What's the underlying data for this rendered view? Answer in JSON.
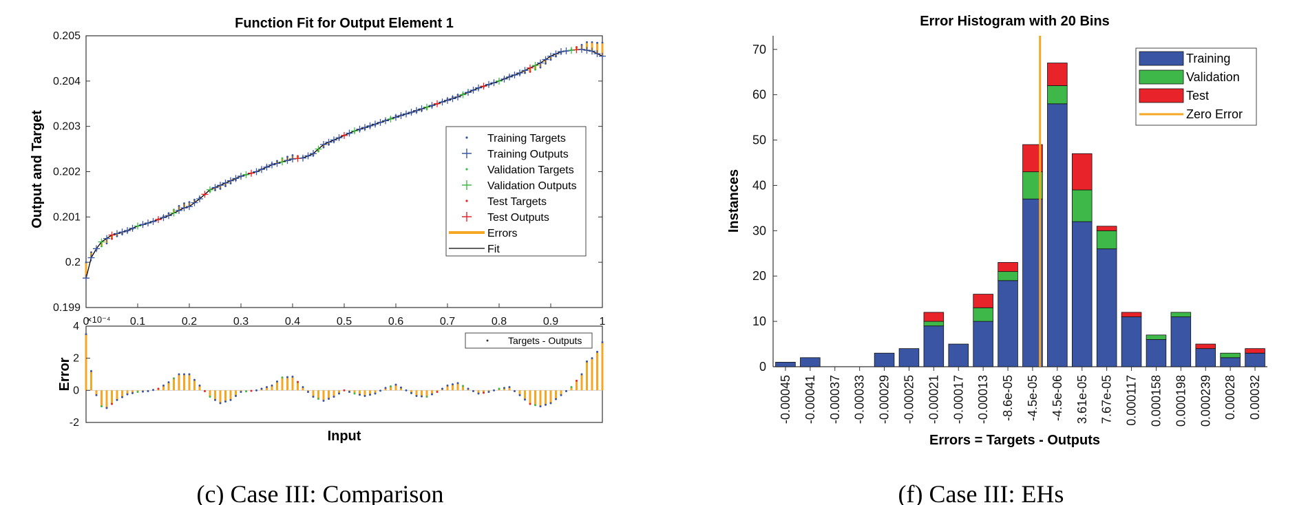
{
  "captions": {
    "left": "(c) Case III: Comparison",
    "right": "(f) Case III: EHs"
  },
  "colors": {
    "training": "#3a55a4",
    "validation": "#3fb84a",
    "test": "#e8232a",
    "errors": "#f5a623",
    "fit": "#000000",
    "zero_error": "#f5a623"
  },
  "chart_data": [
    {
      "type": "line",
      "title": "Function Fit for Output Element 1",
      "ylabel": "Output and Target",
      "xlim": [
        0,
        1
      ],
      "ylim": [
        0.199,
        0.205
      ],
      "yticks": [
        "0.199",
        "0.2",
        "0.201",
        "0.202",
        "0.203",
        "0.204",
        "0.205"
      ],
      "xticks": [
        "0",
        "0.1",
        "0.2",
        "0.3",
        "0.4",
        "0.5",
        "0.6",
        "0.7",
        "0.8",
        "0.9",
        "1"
      ],
      "legend_position": "right",
      "legend": [
        "Training Targets",
        "Training Outputs",
        "Validation Targets",
        "Validation Outputs",
        "Test Targets",
        "Test Outputs",
        "Errors",
        "Fit"
      ],
      "fit_curve": {
        "x": [
          0,
          0.01,
          0.02,
          0.03,
          0.05,
          0.08,
          0.1,
          0.13,
          0.16,
          0.19,
          0.2,
          0.22,
          0.24,
          0.26,
          0.3,
          0.33,
          0.36,
          0.4,
          0.42,
          0.44,
          0.46,
          0.48,
          0.52,
          0.56,
          0.6,
          0.64,
          0.68,
          0.72,
          0.76,
          0.8,
          0.84,
          0.88,
          0.9,
          0.92,
          0.94,
          0.96,
          0.98,
          1.0
        ],
        "y": [
          0.19965,
          0.2001,
          0.2003,
          0.20045,
          0.2006,
          0.2007,
          0.2008,
          0.2009,
          0.20103,
          0.2012,
          0.20123,
          0.2014,
          0.2016,
          0.2017,
          0.2019,
          0.202,
          0.20215,
          0.20228,
          0.2023,
          0.2024,
          0.2026,
          0.2027,
          0.2029,
          0.20305,
          0.2032,
          0.20335,
          0.2035,
          0.20365,
          0.20385,
          0.204,
          0.20418,
          0.2044,
          0.20455,
          0.20465,
          0.20468,
          0.2047,
          0.20466,
          0.20455
        ]
      },
      "error_subplot": {
        "ylabel": "Error",
        "xlabel": "Input",
        "ylim": [
          -2,
          4
        ],
        "yticks": [
          "-2",
          "0",
          "2",
          "4"
        ],
        "exponent": "×10⁻⁴",
        "legend": "Targets - Outputs",
        "error_curve": {
          "x": [
            0,
            0.01,
            0.02,
            0.03,
            0.04,
            0.06,
            0.08,
            0.1,
            0.12,
            0.14,
            0.16,
            0.18,
            0.2,
            0.22,
            0.24,
            0.26,
            0.28,
            0.3,
            0.33,
            0.36,
            0.38,
            0.4,
            0.42,
            0.44,
            0.46,
            0.48,
            0.5,
            0.52,
            0.54,
            0.56,
            0.58,
            0.6,
            0.62,
            0.64,
            0.66,
            0.68,
            0.7,
            0.72,
            0.74,
            0.76,
            0.78,
            0.8,
            0.82,
            0.84,
            0.86,
            0.88,
            0.9,
            0.92,
            0.94,
            0.96,
            0.97,
            0.98,
            0.99,
            1.0
          ],
          "y": [
            3.5,
            1.2,
            -0.3,
            -1.0,
            -1.1,
            -0.6,
            -0.25,
            -0.1,
            -0.05,
            0.1,
            0.5,
            1.0,
            1.0,
            0.3,
            -0.4,
            -0.8,
            -0.6,
            -0.1,
            0.0,
            0.3,
            0.8,
            0.85,
            0.2,
            -0.4,
            -0.65,
            -0.4,
            0.0,
            -0.2,
            -0.35,
            -0.2,
            0.15,
            0.35,
            0.0,
            -0.35,
            -0.4,
            -0.1,
            0.3,
            0.45,
            0.1,
            -0.2,
            -0.1,
            0.1,
            0.2,
            -0.3,
            -0.85,
            -1.0,
            -0.8,
            -0.3,
            0.2,
            1.0,
            1.8,
            2.0,
            2.4,
            3.0
          ]
        }
      }
    },
    {
      "type": "bar",
      "stacked": true,
      "title": "Error Histogram with 20 Bins",
      "xlabel": "Errors = Targets - Outputs",
      "ylabel": "Instances",
      "ylim": [
        0,
        73
      ],
      "yticks": [
        "0",
        "10",
        "20",
        "30",
        "40",
        "50",
        "60",
        "70"
      ],
      "legend_position": "top-right",
      "zero_error_bin": 10.3,
      "categories": [
        "-0.00045",
        "-0.00041",
        "-0.00037",
        "-0.00033",
        "-0.00029",
        "-0.00025",
        "-0.00021",
        "-0.00017",
        "-0.00013",
        "-8.6e-05",
        "-4.5e-05",
        "-4.5e-06",
        "3.61e-05",
        "7.67e-05",
        "0.000117",
        "0.000158",
        "0.000198",
        "0.000239",
        "0.00028",
        "0.00032"
      ],
      "series": [
        {
          "name": "Training",
          "values": [
            1,
            2,
            0,
            0,
            3,
            4,
            9,
            5,
            10,
            19,
            37,
            58,
            32,
            26,
            11,
            6,
            11,
            4,
            2,
            3
          ]
        },
        {
          "name": "Validation",
          "values": [
            0,
            0,
            0,
            0,
            0,
            0,
            1,
            0,
            3,
            2,
            6,
            4,
            7,
            4,
            0,
            1,
            1,
            0,
            1,
            0
          ]
        },
        {
          "name": "Test",
          "values": [
            0,
            0,
            0,
            0,
            0,
            0,
            2,
            0,
            3,
            2,
            6,
            5,
            8,
            1,
            1,
            0,
            0,
            1,
            0,
            1
          ]
        }
      ],
      "zero_error_label": "Zero Error"
    }
  ]
}
